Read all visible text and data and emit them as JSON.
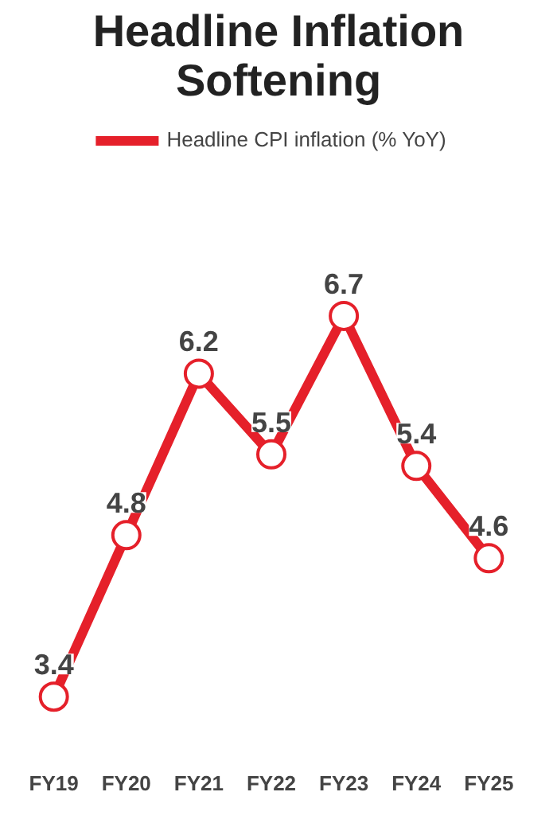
{
  "chart_data": {
    "type": "line",
    "title": "Headline Inflation Softening",
    "categories": [
      "FY19",
      "FY20",
      "FY21",
      "FY22",
      "FY23",
      "FY24",
      "FY25"
    ],
    "series": [
      {
        "name": "Headline CPI inflation (% YoY)",
        "color": "#e5202a",
        "values": [
          3.4,
          4.8,
          6.2,
          5.5,
          6.7,
          5.4,
          4.6
        ]
      }
    ],
    "data_labels": true,
    "marker": "circle",
    "line_style": "solid",
    "grid": false,
    "legend": "top",
    "tick_labels": "x"
  }
}
